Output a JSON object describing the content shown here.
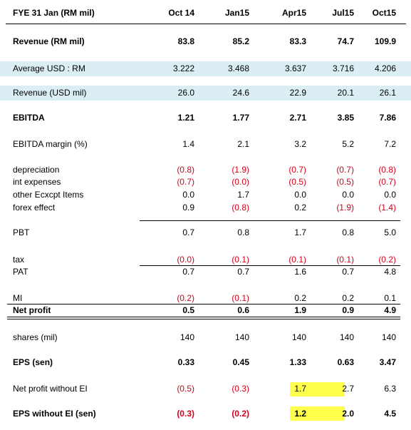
{
  "table": {
    "header": [
      "FYE 31 Jan (RM mil)",
      "Oct 14",
      "Jan15",
      "Apr15",
      "Jul15",
      "Oct15"
    ],
    "rows": [
      [
        "Revenue (RM mil)",
        "83.8",
        "85.2",
        "83.3",
        "74.7",
        "109.9"
      ],
      [
        "Average USD : RM",
        "3.222",
        "3.468",
        "3.637",
        "3.716",
        "4.206"
      ],
      [
        "Revenue (USD mil)",
        "26.0",
        "24.6",
        "22.9",
        "20.1",
        "26.1"
      ],
      [
        "EBITDA",
        "1.21",
        "1.77",
        "2.71",
        "3.85",
        "7.86"
      ],
      [
        "EBITDA margin (%)",
        "1.4",
        "2.1",
        "3.2",
        "5.2",
        "7.2"
      ],
      [
        "depreciation",
        "(0.8)",
        "(1.9)",
        "(0.7)",
        "(0.7)",
        "(0.8)"
      ],
      [
        "int expenses",
        "(0.7)",
        "(0.0)",
        "(0.5)",
        "(0.5)",
        "(0.7)"
      ],
      [
        "other Ecxcpt Items",
        "0.0",
        "1.7",
        "0.0",
        "0.0",
        "0.0"
      ],
      [
        "forex effect",
        "0.9",
        "(0.8)",
        "0.2",
        "(1.9)",
        "(1.4)"
      ],
      [
        "PBT",
        "0.7",
        "0.8",
        "1.7",
        "0.8",
        "5.0"
      ],
      [
        "tax",
        "(0.0)",
        "(0.1)",
        "(0.1)",
        "(0.1)",
        "(0.2)"
      ],
      [
        "PAT",
        "0.7",
        "0.7",
        "1.6",
        "0.7",
        "4.8"
      ],
      [
        "MI",
        "(0.2)",
        "(0.1)",
        "0.2",
        "0.2",
        "0.1"
      ],
      [
        "Net profit",
        "0.5",
        "0.6",
        "1.9",
        "0.9",
        "4.9"
      ],
      [
        "shares (mil)",
        "140",
        "140",
        "140",
        "140",
        "140"
      ],
      [
        "EPS (sen)",
        "0.33",
        "0.45",
        "1.33",
        "0.63",
        "3.47"
      ],
      [
        "Net profit without EI",
        "(0.5)",
        "(0.3)",
        "1.7",
        "2.7",
        "6.3"
      ],
      [
        "EPS without EI (sen)",
        "(0.3)",
        "(0.2)",
        "1.2",
        "2.0",
        "4.5"
      ]
    ]
  }
}
